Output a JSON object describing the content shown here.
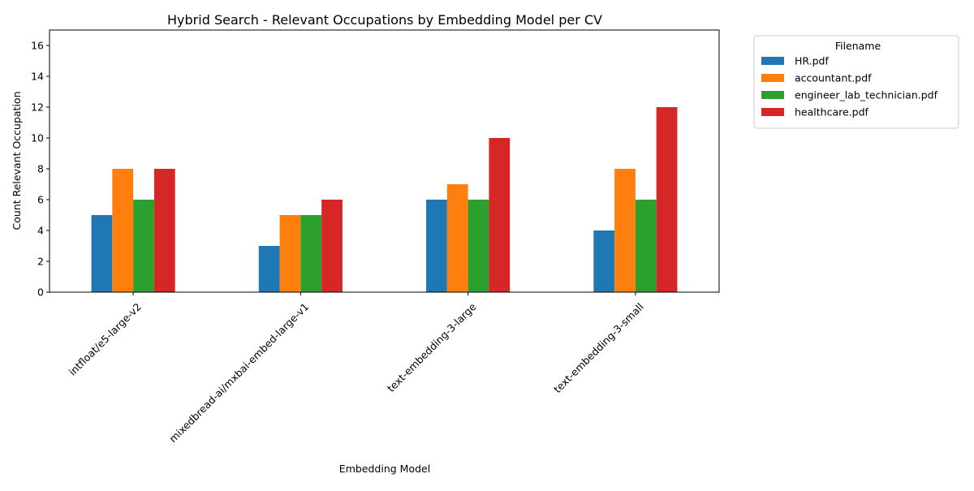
{
  "chart_data": {
    "type": "bar",
    "title": "Hybrid Search - Relevant Occupations by Embedding Model per CV",
    "xlabel": "Embedding Model",
    "ylabel": "Count Relevant Occupation",
    "categories": [
      "intfloat/e5-large-v2",
      "mixedbread-ai/mxbai-embed-large-v1",
      "text-embedding-3-large",
      "text-embedding-3-small"
    ],
    "series": [
      {
        "name": "HR.pdf",
        "values": [
          5,
          3,
          6,
          4
        ],
        "color": "#1f77b4"
      },
      {
        "name": "accountant.pdf",
        "values": [
          8,
          5,
          7,
          8
        ],
        "color": "#ff7f0e"
      },
      {
        "name": "engineer_lab_technician.pdf",
        "values": [
          6,
          5,
          6,
          6
        ],
        "color": "#2ca02c"
      },
      {
        "name": "healthcare.pdf",
        "values": [
          8,
          6,
          10,
          12
        ],
        "color": "#d62728"
      }
    ],
    "ylim": [
      0,
      17
    ],
    "yticks": [
      0,
      2,
      4,
      6,
      8,
      10,
      12,
      14,
      16
    ],
    "grid": false,
    "legend": {
      "title": "Filename",
      "placement": "outside-right-top"
    }
  }
}
